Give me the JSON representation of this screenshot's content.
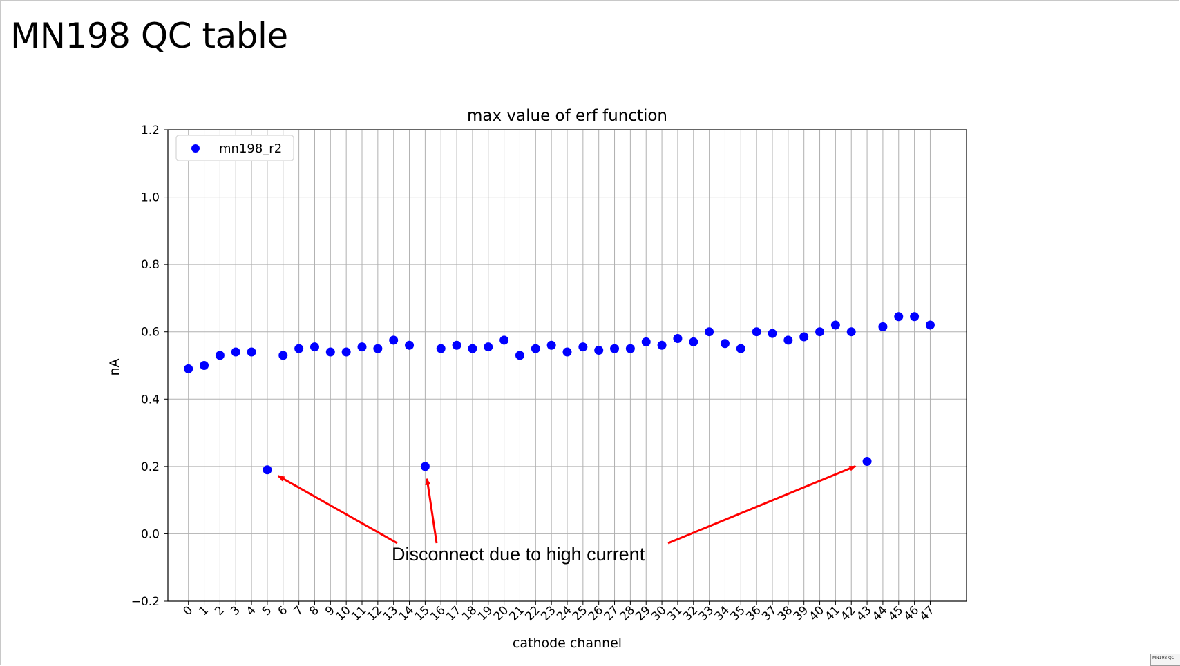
{
  "slide": {
    "title": "MN198 QC table",
    "thumbnail_label": "MN198 QC"
  },
  "chart_data": {
    "type": "scatter",
    "title": "max value of erf function",
    "xlabel": "cathode channel",
    "ylabel": "nA",
    "xlim": [
      -1.3,
      49.3
    ],
    "ylim": [
      -0.2,
      1.2
    ],
    "yticks": [
      -0.2,
      0.0,
      0.2,
      0.4,
      0.6,
      0.8,
      1.0,
      1.2
    ],
    "ytick_labels": [
      "−0.2",
      "0.0",
      "0.2",
      "0.4",
      "0.6",
      "0.8",
      "1.0",
      "1.2"
    ],
    "xticks": [
      0,
      1,
      2,
      3,
      4,
      5,
      6,
      7,
      8,
      9,
      10,
      11,
      12,
      13,
      14,
      15,
      16,
      17,
      18,
      19,
      20,
      21,
      22,
      23,
      24,
      25,
      26,
      27,
      28,
      29,
      30,
      31,
      32,
      33,
      34,
      35,
      36,
      37,
      38,
      39,
      40,
      41,
      42,
      43,
      44,
      45,
      46,
      47
    ],
    "grid": true,
    "legend_position": "top-left",
    "series": [
      {
        "name": "mn198_r2",
        "color": "#0000ff",
        "x": [
          0,
          1,
          2,
          3,
          4,
          5,
          6,
          7,
          8,
          9,
          10,
          11,
          12,
          13,
          14,
          15,
          16,
          17,
          18,
          19,
          20,
          21,
          22,
          23,
          24,
          25,
          26,
          27,
          28,
          29,
          30,
          31,
          32,
          33,
          34,
          35,
          36,
          37,
          38,
          39,
          40,
          41,
          42,
          43,
          44,
          45,
          46,
          47
        ],
        "y": [
          0.49,
          0.5,
          0.53,
          0.54,
          0.54,
          0.19,
          0.53,
          0.55,
          0.555,
          0.54,
          0.54,
          0.555,
          0.55,
          0.575,
          0.56,
          0.2,
          0.55,
          0.56,
          0.55,
          0.555,
          0.575,
          0.53,
          0.55,
          0.56,
          0.54,
          0.555,
          0.545,
          0.55,
          0.55,
          0.57,
          0.56,
          0.58,
          0.57,
          0.6,
          0.565,
          0.55,
          0.6,
          0.595,
          0.575,
          0.585,
          0.6,
          0.62,
          0.6,
          0.215,
          0.615,
          0.645,
          0.645,
          0.62
        ]
      }
    ],
    "annotations": [
      {
        "text": "Disconnect due to high current",
        "color": "#ff0000",
        "targets": [
          {
            "channel": 5,
            "value": 0.19
          },
          {
            "channel": 15,
            "value": 0.2
          },
          {
            "channel": 43,
            "value": 0.215
          }
        ]
      }
    ]
  }
}
